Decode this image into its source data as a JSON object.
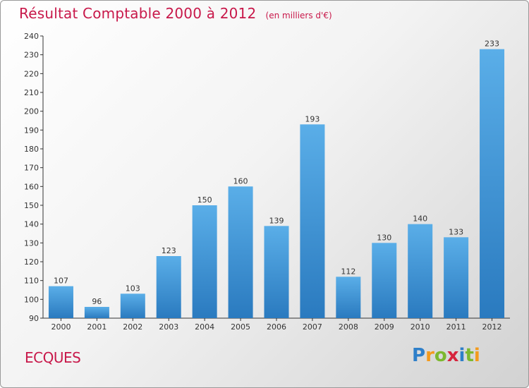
{
  "header": {
    "title": "Résultat Comptable 2000 à 2012",
    "unit": "(en milliers d'€)"
  },
  "footer": {
    "commune": "ECQUES",
    "logo_letters": [
      "P",
      "r",
      "o",
      "x",
      "i",
      "t",
      "i"
    ],
    "logo_colors": [
      "#2e7fc9",
      "#f39a1c",
      "#7cb82f",
      "#d6243c",
      "#2e7fc9",
      "#7cb82f",
      "#f39a1c"
    ]
  },
  "chart_data": {
    "type": "bar",
    "title": "Résultat Comptable 2000 à 2012",
    "xlabel": "",
    "ylabel": "",
    "categories": [
      "2000",
      "2001",
      "2002",
      "2003",
      "2004",
      "2005",
      "2006",
      "2007",
      "2008",
      "2009",
      "2010",
      "2011",
      "2012"
    ],
    "values": [
      107,
      96,
      103,
      123,
      150,
      160,
      139,
      193,
      112,
      130,
      140,
      133,
      233
    ],
    "ylim": [
      90,
      240
    ],
    "yticks": [
      90,
      100,
      110,
      120,
      130,
      140,
      150,
      160,
      170,
      180,
      190,
      200,
      210,
      220,
      230,
      240
    ],
    "grid": false,
    "bar_color_top": "#5aaee8",
    "bar_color_bottom": "#2a7abf"
  }
}
